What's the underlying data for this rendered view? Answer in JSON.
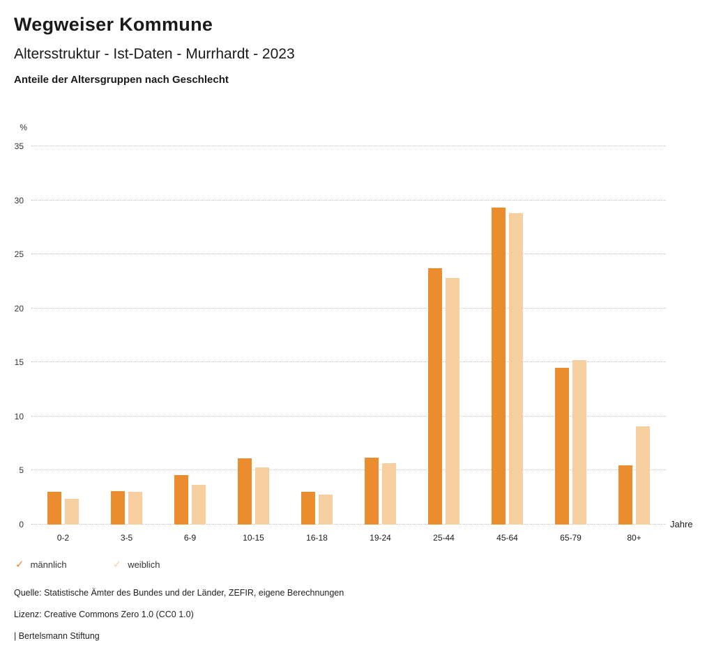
{
  "header": {
    "title": "Wegweiser Kommune",
    "subtitle": "Altersstruktur - Ist-Daten - Murrhardt - 2023",
    "chart_heading": "Anteile der Altersgruppen nach Geschlecht"
  },
  "chart_data": {
    "type": "bar",
    "title": "Anteile der Altersgruppen nach Geschlecht",
    "categories": [
      "0-2",
      "3-5",
      "6-9",
      "10-15",
      "16-18",
      "19-24",
      "25-44",
      "45-64",
      "65-79",
      "80+"
    ],
    "series": [
      {
        "name": "männlich",
        "color": "#EB8C2F",
        "values": [
          3.0,
          3.1,
          4.6,
          6.1,
          3.0,
          6.2,
          23.7,
          29.3,
          14.5,
          5.5
        ]
      },
      {
        "name": "weiblich",
        "color": "#F6CEA0",
        "values": [
          2.4,
          3.0,
          3.7,
          5.3,
          2.8,
          5.7,
          22.8,
          28.8,
          15.2,
          9.1
        ]
      }
    ],
    "ylabel": "%",
    "xlabel": "Jahre",
    "ylim": [
      0,
      35
    ],
    "ytick_step": 5,
    "grid": true,
    "legend_position": "bottom"
  },
  "axes": {
    "y_unit": "%",
    "x_unit": "Jahre"
  },
  "legend": {
    "items": [
      {
        "label": "männlich",
        "color": "#EB8C2F",
        "icon": "check-icon"
      },
      {
        "label": "weiblich",
        "color": "#F6CEA0",
        "icon": "check-icon"
      }
    ]
  },
  "footer": {
    "source": "Quelle: Statistische Ämter des Bundes und der Länder, ZEFIR, eigene Berechnungen",
    "license": "Lizenz: Creative Commons Zero 1.0 (CC0 1.0)",
    "attribution": "| Bertelsmann Stiftung"
  }
}
